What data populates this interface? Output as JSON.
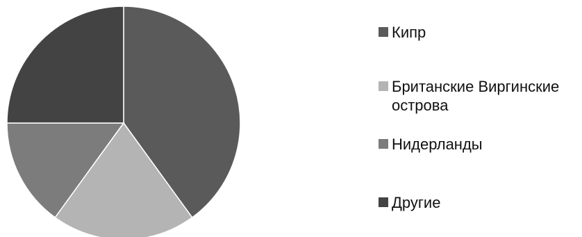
{
  "chart_data": {
    "type": "pie",
    "title": "",
    "legend_position": "right",
    "categories": [
      "Кипр",
      "Британские Виргинские острова",
      "Нидерланды",
      "Другие"
    ],
    "values": [
      40,
      20,
      15,
      25
    ],
    "colors": [
      "#5a5a5a",
      "#b4b4b4",
      "#7c7c7c",
      "#434343"
    ],
    "series": [
      {
        "values": [
          40,
          20,
          15,
          25
        ]
      }
    ]
  },
  "legend": {
    "items": [
      {
        "label": "Кипр"
      },
      {
        "label": "Британские Виргинские острова"
      },
      {
        "label": "Нидерланды"
      },
      {
        "label": "Другие"
      }
    ]
  }
}
